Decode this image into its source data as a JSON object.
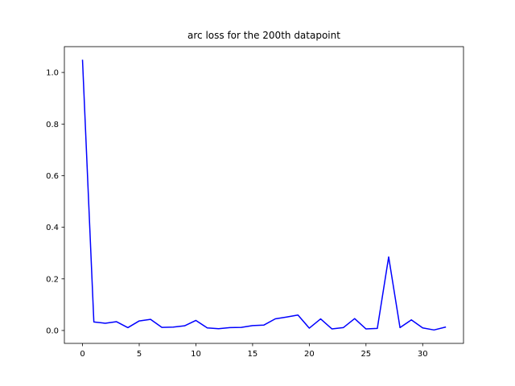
{
  "chart_data": {
    "type": "line",
    "title": "arc loss for the 200th datapoint",
    "xlabel": "",
    "ylabel": "",
    "xlim": [
      -1.6,
      33.6
    ],
    "ylim": [
      -0.05,
      1.1
    ],
    "xticks": [
      0,
      5,
      10,
      15,
      20,
      25,
      30
    ],
    "xtick_labels": [
      "0",
      "5",
      "10",
      "15",
      "20",
      "25",
      "30"
    ],
    "yticks": [
      0.0,
      0.2,
      0.4,
      0.6,
      0.8,
      1.0
    ],
    "ytick_labels": [
      "0.0",
      "0.2",
      "0.4",
      "0.6",
      "0.8",
      "1.0"
    ],
    "grid": false,
    "series": [
      {
        "color": "#0000ff",
        "x": [
          0,
          1,
          2,
          3,
          4,
          5,
          6,
          7,
          8,
          9,
          10,
          11,
          12,
          13,
          14,
          15,
          16,
          17,
          18,
          19,
          20,
          21,
          22,
          23,
          24,
          25,
          26,
          27,
          28,
          29,
          30,
          31,
          32
        ],
        "values": [
          1.047,
          0.033,
          0.028,
          0.034,
          0.011,
          0.037,
          0.043,
          0.012,
          0.013,
          0.018,
          0.039,
          0.01,
          0.007,
          0.011,
          0.012,
          0.019,
          0.021,
          0.045,
          0.052,
          0.06,
          0.009,
          0.045,
          0.006,
          0.011,
          0.046,
          0.006,
          0.008,
          0.285,
          0.011,
          0.041,
          0.01,
          0.002,
          0.013
        ]
      }
    ]
  }
}
